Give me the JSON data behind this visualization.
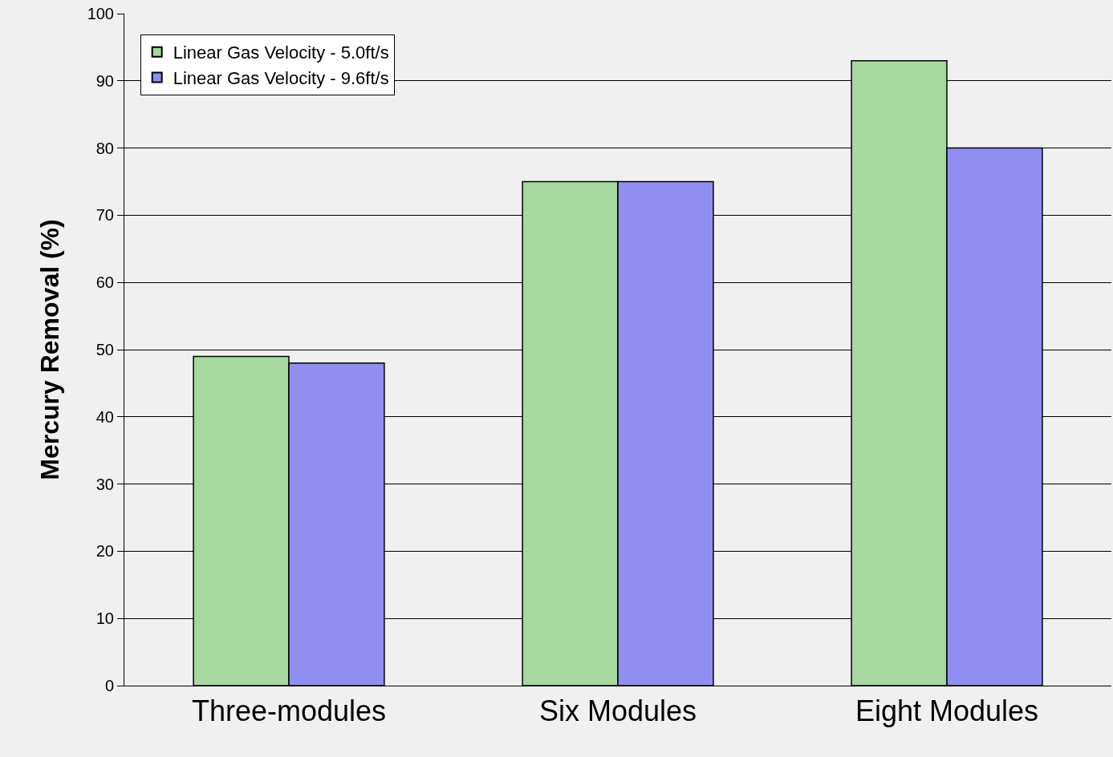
{
  "chart_data": {
    "type": "bar",
    "ylabel": "Mercury Removal (%)",
    "categories": [
      "Three-modules",
      "Six Modules",
      "Eight Modules"
    ],
    "series": [
      {
        "name": "Linear Gas Velocity - 5.0ft/s",
        "color": "#a6d8a0",
        "values": [
          49,
          75,
          93
        ]
      },
      {
        "name": "Linear Gas Velocity - 9.6ft/s",
        "color": "#8f8ff2",
        "values": [
          48,
          75,
          80
        ]
      }
    ],
    "ylim": [
      0,
      100
    ],
    "yticks": [
      0,
      10,
      20,
      30,
      40,
      50,
      60,
      70,
      80,
      90,
      100
    ],
    "grid": "y",
    "legend": "top left"
  }
}
